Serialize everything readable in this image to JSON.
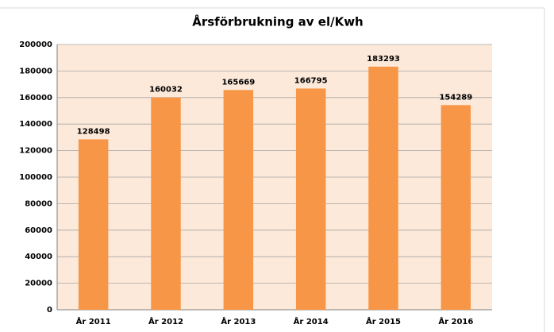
{
  "chart_data": {
    "type": "bar",
    "title": "Årsförbrukning av el/Kwh",
    "categories": [
      "År 2011",
      "År 2012",
      "År 2013",
      "År 2014",
      "År 2015",
      "År 2016"
    ],
    "values": [
      128498,
      160032,
      165669,
      166795,
      183293,
      154289
    ],
    "color": "#f79646",
    "background": "#fde9d9",
    "ylim": [
      0,
      200000
    ],
    "yticks": [
      0,
      20000,
      40000,
      60000,
      80000,
      100000,
      120000,
      140000,
      160000,
      180000,
      200000
    ],
    "grid": true
  }
}
